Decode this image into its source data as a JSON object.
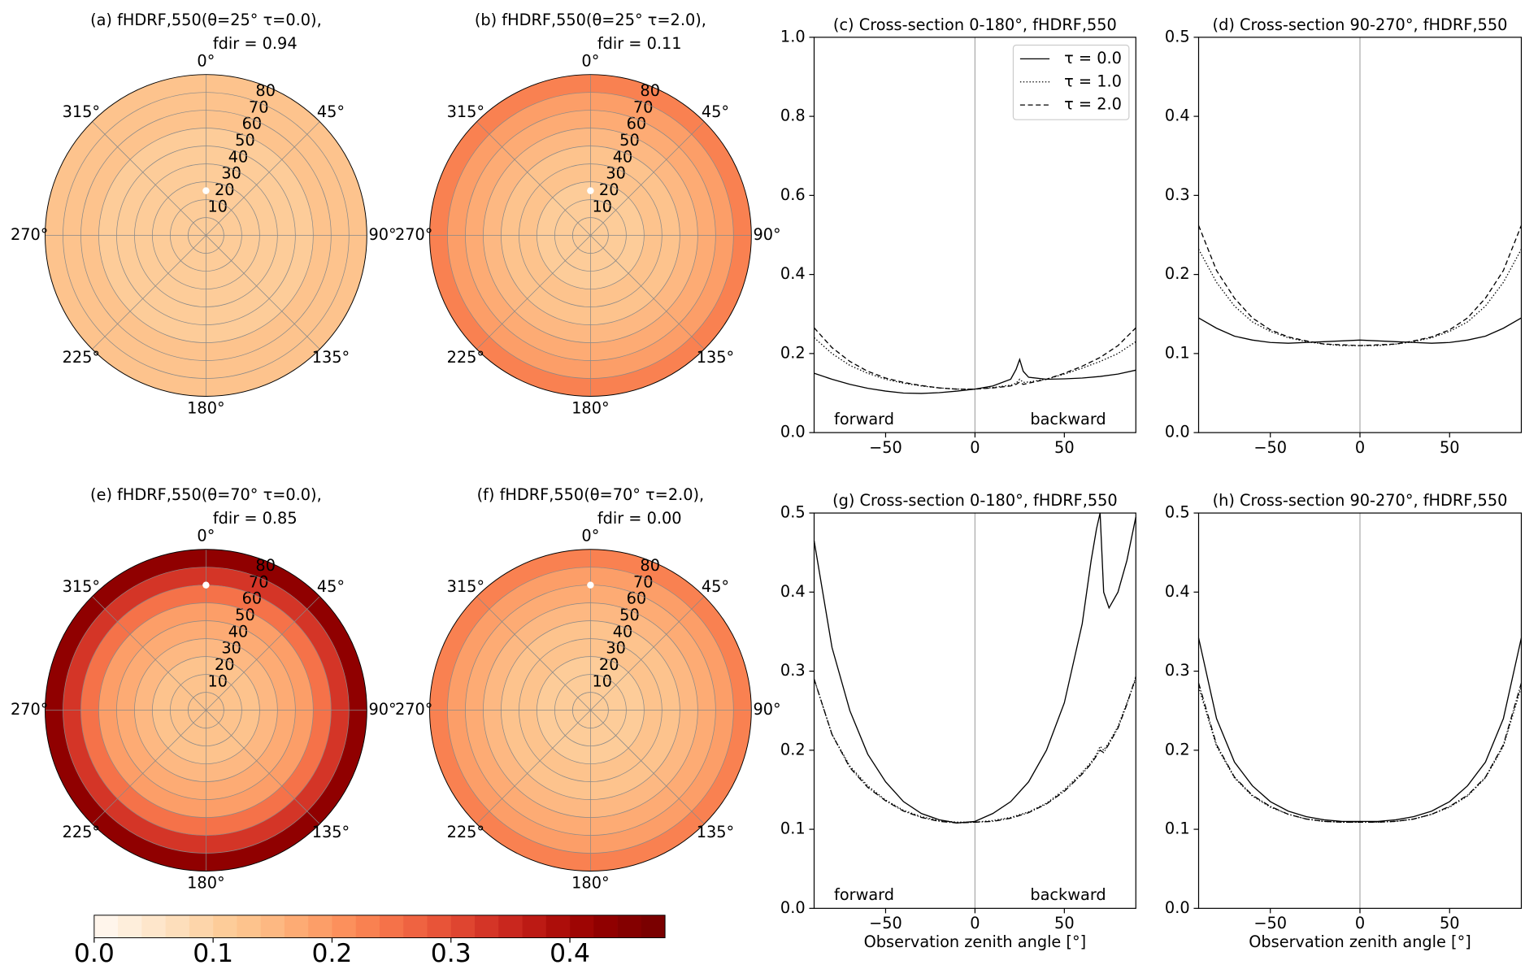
{
  "chart_data": [
    {
      "type": "polar",
      "title": "(a) fHDRF,550(θ=25°  τ=0.0),",
      "subtitle": "fdir = 0.94",
      "thetaticks": [
        {
          "value": 0,
          "label": "0°"
        },
        {
          "value": 45,
          "label": "45°"
        },
        {
          "value": 90,
          "label": "90°"
        },
        {
          "value": 135,
          "label": "135°"
        },
        {
          "value": 180,
          "label": "180°"
        },
        {
          "value": 225,
          "label": "225°"
        },
        {
          "value": 270,
          "label": "270°"
        },
        {
          "value": 315,
          "label": "315°"
        }
      ],
      "rlim": [
        0,
        90
      ],
      "rticks": [
        10,
        20,
        30,
        40,
        50,
        60,
        70,
        80
      ],
      "rings": [
        0,
        10,
        20,
        30,
        40,
        50,
        60,
        70,
        80,
        90
      ],
      "values": [
        0.11,
        0.11,
        0.11,
        0.11,
        0.11,
        0.115,
        0.12,
        0.12,
        0.125
      ],
      "sun": {
        "zenith": 25,
        "azimuth": 0
      }
    },
    {
      "type": "polar",
      "title": "(b) fHDRF,550(θ=25°  τ=2.0),",
      "subtitle": "fdir = 0.11",
      "thetaticks": [
        {
          "value": 0,
          "label": "0°"
        },
        {
          "value": 45,
          "label": "45°"
        },
        {
          "value": 90,
          "label": "90°"
        },
        {
          "value": 135,
          "label": "135°"
        },
        {
          "value": 180,
          "label": "180°"
        },
        {
          "value": 225,
          "label": "225°"
        },
        {
          "value": 270,
          "label": "270°"
        },
        {
          "value": 315,
          "label": "315°"
        }
      ],
      "rlim": [
        0,
        90
      ],
      "rticks": [
        10,
        20,
        30,
        40,
        50,
        60,
        70,
        80
      ],
      "rings": [
        0,
        10,
        20,
        30,
        40,
        50,
        60,
        70,
        80,
        90
      ],
      "values": [
        0.11,
        0.11,
        0.115,
        0.12,
        0.13,
        0.145,
        0.165,
        0.195,
        0.23
      ],
      "sun": {
        "zenith": 25,
        "azimuth": 0
      }
    },
    {
      "type": "line",
      "title": "(c) Cross-section 0-180°, fHDRF,550",
      "xlim": [
        -90,
        90
      ],
      "ylim": [
        0,
        1
      ],
      "xticks": [
        {
          "value": -50,
          "label": "−50"
        },
        0,
        50
      ],
      "yticks": [
        {
          "value": 0,
          "label": "0.0"
        },
        {
          "value": 0.2,
          "label": "0.2"
        },
        {
          "value": 0.4,
          "label": "0.4"
        },
        {
          "value": 0.6,
          "label": "0.6"
        },
        {
          "value": 0.8,
          "label": "0.8"
        },
        {
          "value": 1,
          "label": "1.0"
        }
      ],
      "vline": 0,
      "annotations": [
        "forward",
        "backward"
      ],
      "legend": "upper right",
      "x": [
        -90,
        -80,
        -70,
        -60,
        -50,
        -40,
        -30,
        -20,
        -10,
        0,
        10,
        20,
        23,
        25,
        27,
        30,
        40,
        50,
        60,
        70,
        80,
        90
      ],
      "series": [
        {
          "name": "τ = 0.0",
          "color": "#000000",
          "dash": "solid",
          "values": [
            0.15,
            0.135,
            0.122,
            0.112,
            0.105,
            0.1,
            0.099,
            0.101,
            0.105,
            0.11,
            0.118,
            0.135,
            0.16,
            0.185,
            0.155,
            0.14,
            0.135,
            0.136,
            0.138,
            0.142,
            0.148,
            0.158
          ]
        },
        {
          "name": "τ = 1.0",
          "color": "#000000",
          "dash": "dotted",
          "values": [
            0.24,
            0.2,
            0.17,
            0.15,
            0.135,
            0.125,
            0.118,
            0.113,
            0.11,
            0.11,
            0.114,
            0.12,
            0.125,
            0.135,
            0.127,
            0.128,
            0.135,
            0.148,
            0.163,
            0.18,
            0.2,
            0.23
          ]
        },
        {
          "name": "τ = 2.0",
          "color": "#000000",
          "dash": "dashed",
          "values": [
            0.265,
            0.215,
            0.18,
            0.155,
            0.138,
            0.127,
            0.119,
            0.113,
            0.11,
            0.11,
            0.113,
            0.118,
            0.122,
            0.128,
            0.122,
            0.125,
            0.135,
            0.15,
            0.168,
            0.19,
            0.22,
            0.265
          ]
        }
      ]
    },
    {
      "type": "line",
      "title": "(d) Cross-section 90-270°, fHDRF,550",
      "xlim": [
        -90,
        90
      ],
      "ylim": [
        0,
        0.5
      ],
      "xticks": [
        {
          "value": -50,
          "label": "−50"
        },
        0,
        50
      ],
      "yticks": [
        {
          "value": 0,
          "label": "0.0"
        },
        0.1,
        0.2,
        0.3,
        0.4,
        0.5
      ],
      "vline": 0,
      "x": [
        -90,
        -80,
        -70,
        -60,
        -50,
        -40,
        -30,
        -20,
        -10,
        0,
        10,
        20,
        30,
        40,
        50,
        60,
        70,
        80,
        90
      ],
      "series": [
        {
          "color": "#000000",
          "dash": "solid",
          "values": [
            0.145,
            0.132,
            0.122,
            0.117,
            0.114,
            0.113,
            0.114,
            0.115,
            0.116,
            0.117,
            0.116,
            0.115,
            0.114,
            0.113,
            0.114,
            0.117,
            0.122,
            0.132,
            0.145
          ]
        },
        {
          "color": "#000000",
          "dash": "dotted",
          "values": [
            0.232,
            0.19,
            0.16,
            0.14,
            0.128,
            0.12,
            0.115,
            0.112,
            0.11,
            0.11,
            0.11,
            0.112,
            0.115,
            0.12,
            0.128,
            0.14,
            0.16,
            0.19,
            0.232
          ]
        },
        {
          "color": "#000000",
          "dash": "dashed",
          "values": [
            0.262,
            0.205,
            0.17,
            0.145,
            0.13,
            0.121,
            0.116,
            0.112,
            0.111,
            0.11,
            0.111,
            0.112,
            0.116,
            0.121,
            0.13,
            0.145,
            0.17,
            0.205,
            0.262
          ]
        }
      ]
    },
    {
      "type": "polar",
      "title": "(e) fHDRF,550(θ=70°  τ=0.0),",
      "subtitle": "fdir = 0.85",
      "thetaticks": [
        {
          "value": 0,
          "label": "0°"
        },
        {
          "value": 45,
          "label": "45°"
        },
        {
          "value": 90,
          "label": "90°"
        },
        {
          "value": 135,
          "label": "135°"
        },
        {
          "value": 180,
          "label": "180°"
        },
        {
          "value": 225,
          "label": "225°"
        },
        {
          "value": 270,
          "label": "270°"
        },
        {
          "value": 315,
          "label": "315°"
        }
      ],
      "rlim": [
        0,
        90
      ],
      "rticks": [
        10,
        20,
        30,
        40,
        50,
        60,
        70,
        80
      ],
      "rings": [
        0,
        10,
        20,
        30,
        40,
        50,
        60,
        70,
        80,
        90
      ],
      "values": [
        0.12,
        0.125,
        0.13,
        0.145,
        0.16,
        0.19,
        0.24,
        0.32,
        0.42
      ],
      "sun": {
        "zenith": 70,
        "azimuth": 0
      }
    },
    {
      "type": "polar",
      "title": "(f) fHDRF,550(θ=70°  τ=2.0),",
      "subtitle": "fdir = 0.00",
      "thetaticks": [
        {
          "value": 0,
          "label": "0°"
        },
        {
          "value": 45,
          "label": "45°"
        },
        {
          "value": 90,
          "label": "90°"
        },
        {
          "value": 135,
          "label": "135°"
        },
        {
          "value": 180,
          "label": "180°"
        },
        {
          "value": 225,
          "label": "225°"
        },
        {
          "value": 270,
          "label": "270°"
        },
        {
          "value": 315,
          "label": "315°"
        }
      ],
      "rlim": [
        0,
        90
      ],
      "rticks": [
        10,
        20,
        30,
        40,
        50,
        60,
        70,
        80
      ],
      "rings": [
        0,
        10,
        20,
        30,
        40,
        50,
        60,
        70,
        80,
        90
      ],
      "values": [
        0.11,
        0.11,
        0.115,
        0.12,
        0.13,
        0.145,
        0.16,
        0.19,
        0.22
      ],
      "sun": {
        "zenith": 70,
        "azimuth": 0
      }
    },
    {
      "type": "line",
      "title": "(g) Cross-section 0-180°, fHDRF,550",
      "xlabel": "Observation zenith angle [°]",
      "xlim": [
        -90,
        90
      ],
      "ylim": [
        0,
        0.5
      ],
      "xticks": [
        {
          "value": -50,
          "label": "−50"
        },
        0,
        50
      ],
      "yticks": [
        {
          "value": 0,
          "label": "0.0"
        },
        0.1,
        0.2,
        0.3,
        0.4,
        0.5
      ],
      "vline": 0,
      "annotations": [
        "forward",
        "backward"
      ],
      "x": [
        -90,
        -80,
        -70,
        -60,
        -50,
        -40,
        -30,
        -20,
        -10,
        0,
        10,
        20,
        30,
        40,
        50,
        60,
        65,
        68,
        70,
        72,
        75,
        80,
        85,
        90
      ],
      "series": [
        {
          "color": "#000000",
          "dash": "solid",
          "values": [
            0.465,
            0.33,
            0.25,
            0.195,
            0.16,
            0.135,
            0.12,
            0.112,
            0.108,
            0.11,
            0.12,
            0.135,
            0.16,
            0.2,
            0.26,
            0.36,
            0.44,
            0.48,
            0.5,
            0.4,
            0.38,
            0.4,
            0.44,
            0.495
          ]
        },
        {
          "color": "#000000",
          "dash": "dotted",
          "values": [
            0.29,
            0.22,
            0.18,
            0.155,
            0.137,
            0.124,
            0.116,
            0.111,
            0.109,
            0.109,
            0.111,
            0.115,
            0.122,
            0.133,
            0.15,
            0.172,
            0.185,
            0.195,
            0.205,
            0.2,
            0.21,
            0.23,
            0.26,
            0.29
          ]
        },
        {
          "color": "#000000",
          "dash": "dashdot",
          "values": [
            0.29,
            0.22,
            0.178,
            0.153,
            0.136,
            0.123,
            0.115,
            0.11,
            0.108,
            0.109,
            0.11,
            0.114,
            0.121,
            0.132,
            0.148,
            0.17,
            0.183,
            0.193,
            0.2,
            0.197,
            0.208,
            0.228,
            0.258,
            0.293
          ]
        }
      ]
    },
    {
      "type": "line",
      "title": "(h) Cross-section 90-270°, fHDRF,550",
      "xlabel": "Observation zenith angle [°]",
      "xlim": [
        -90,
        90
      ],
      "ylim": [
        0,
        0.5
      ],
      "xticks": [
        {
          "value": -50,
          "label": "−50"
        },
        0,
        50
      ],
      "yticks": [
        {
          "value": 0,
          "label": "0.0"
        },
        0.1,
        0.2,
        0.3,
        0.4,
        0.5
      ],
      "vline": 0,
      "x": [
        -90,
        -80,
        -70,
        -60,
        -50,
        -40,
        -30,
        -20,
        -10,
        0,
        10,
        20,
        30,
        40,
        50,
        60,
        70,
        80,
        90
      ],
      "series": [
        {
          "color": "#000000",
          "dash": "solid",
          "values": [
            0.342,
            0.24,
            0.185,
            0.155,
            0.135,
            0.123,
            0.116,
            0.112,
            0.11,
            0.11,
            0.11,
            0.112,
            0.116,
            0.123,
            0.135,
            0.155,
            0.185,
            0.24,
            0.342
          ]
        },
        {
          "color": "#000000",
          "dash": "dotted",
          "values": [
            0.28,
            0.205,
            0.165,
            0.142,
            0.128,
            0.119,
            0.113,
            0.11,
            0.109,
            0.109,
            0.109,
            0.11,
            0.113,
            0.119,
            0.128,
            0.142,
            0.165,
            0.205,
            0.28
          ]
        },
        {
          "color": "#000000",
          "dash": "dashdot",
          "values": [
            0.285,
            0.207,
            0.166,
            0.143,
            0.129,
            0.119,
            0.113,
            0.11,
            0.109,
            0.109,
            0.109,
            0.11,
            0.113,
            0.119,
            0.129,
            0.143,
            0.166,
            0.207,
            0.285
          ]
        }
      ]
    },
    {
      "type": "colorbar",
      "xlim": [
        0,
        0.48
      ],
      "xticks": [
        {
          "value": 0,
          "label": "0.0"
        },
        0.1,
        0.2,
        0.3,
        0.4
      ],
      "bins": [
        0,
        0.02,
        0.04,
        0.06,
        0.08,
        0.1,
        0.12,
        0.14,
        0.16,
        0.18,
        0.2,
        0.22,
        0.24,
        0.26,
        0.28,
        0.3,
        0.32,
        0.34,
        0.36,
        0.38,
        0.4,
        0.42,
        0.44,
        0.46,
        0.48
      ],
      "colors": [
        "#fff5eb",
        "#feeedb",
        "#fee6cb",
        "#fddebb",
        "#fdd5aa",
        "#fdcc99",
        "#fdc38d",
        "#fdb882",
        "#fdab74",
        "#fc9e68",
        "#fc905c",
        "#f98151",
        "#f57249",
        "#ef6341",
        "#e85438",
        "#df4530",
        "#d43527",
        "#c9271e",
        "#bc1a14",
        "#ad0e0a",
        "#9e0503",
        "#900000",
        "#840000",
        "#7a0000"
      ]
    }
  ]
}
